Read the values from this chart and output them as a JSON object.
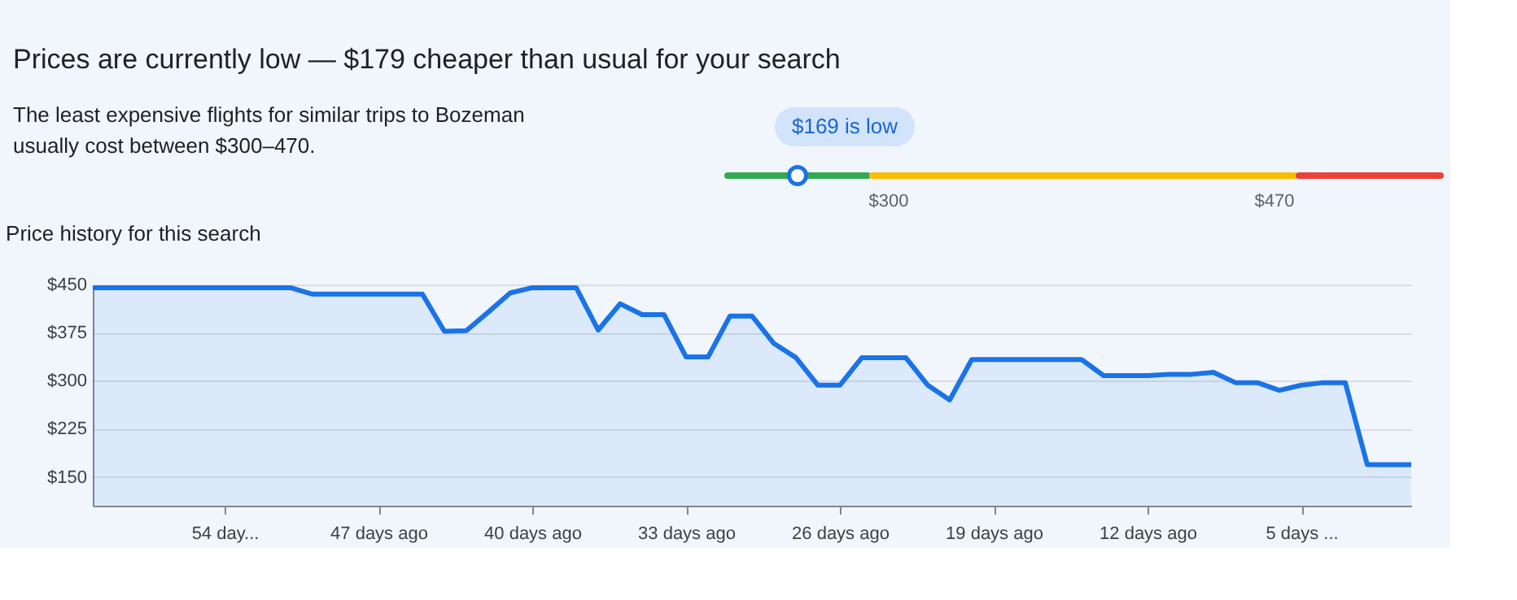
{
  "chart_data": [
    {
      "type": "other",
      "title": "Prices are currently low — $179 cheaper than usual for your search",
      "subtitle": "The least expensive flights for similar trips to Bozeman\nusually cost between $300–470.",
      "annotations": [
        "$169 is low",
        "$300",
        "$470"
      ]
    },
    {
      "type": "area",
      "title": "Price history for this search",
      "x": [
        -60,
        -59,
        -58,
        -57,
        -56,
        -55,
        -54,
        -53,
        -52,
        -51,
        -50,
        -49,
        -48,
        -47,
        -46,
        -45,
        -44,
        -43,
        -42,
        -41,
        -40,
        -39,
        -38,
        -37,
        -36,
        -35,
        -34,
        -33,
        -32,
        -31,
        -30,
        -29,
        -28,
        -27,
        -26,
        -25,
        -24,
        -23,
        -22,
        -21,
        -20,
        -19,
        -18,
        -17,
        -16,
        -15,
        -14,
        -13,
        -12,
        -11,
        -10,
        -9,
        -8,
        -7,
        -6,
        -5,
        -4,
        -3,
        -2,
        -1,
        0
      ],
      "series": [
        {
          "color": "#1a73e8",
          "values": [
            445,
            445,
            445,
            445,
            445,
            445,
            445,
            445,
            445,
            445,
            435,
            435,
            435,
            435,
            435,
            435,
            377,
            378,
            407,
            437,
            445,
            445,
            445,
            379,
            420,
            403,
            403,
            337,
            337,
            401,
            401,
            358,
            336,
            293,
            293,
            336,
            336,
            336,
            293,
            270,
            333,
            333,
            333,
            333,
            333,
            333,
            308,
            308,
            308,
            310,
            310,
            313,
            297,
            297,
            285,
            293,
            297,
            297,
            169,
            169,
            169
          ]
        }
      ],
      "xlim": [
        -60,
        0
      ],
      "xticks": [
        {
          "value": -54,
          "label": "54 day..."
        },
        {
          "value": -47,
          "label": "47 days ago"
        },
        {
          "value": -40,
          "label": "40 days ago"
        },
        {
          "value": -33,
          "label": "33 days ago"
        },
        {
          "value": -26,
          "label": "26 days ago"
        },
        {
          "value": -19,
          "label": "19 days ago"
        },
        {
          "value": -12,
          "label": "12 days ago"
        },
        {
          "value": -5,
          "label": "5 days ..."
        }
      ],
      "ylim": [
        105,
        450
      ],
      "yticks": [
        {
          "value": 150,
          "label": "$150"
        },
        {
          "value": 225,
          "label": "$225"
        },
        {
          "value": 300,
          "label": "$300"
        },
        {
          "value": 375,
          "label": "$375"
        },
        {
          "value": 450,
          "label": "$450"
        }
      ],
      "grid": "y"
    }
  ]
}
